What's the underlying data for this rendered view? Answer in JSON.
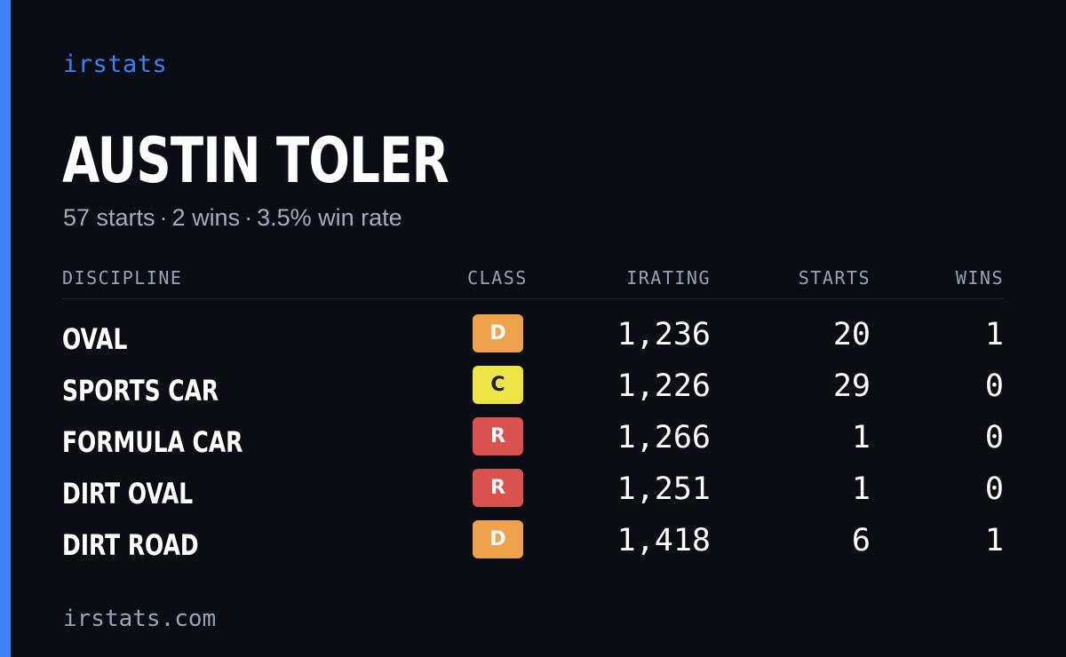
{
  "brand": {
    "name": "irstats",
    "accent_color": "#3b82f6"
  },
  "driver": {
    "name": "AUSTIN TOLER",
    "summary": {
      "starts": "57 starts",
      "wins": "2 wins",
      "win_rate": "3.5% win rate",
      "separator": "·"
    }
  },
  "table": {
    "headers": {
      "discipline": "DISCIPLINE",
      "class": "CLASS",
      "irating": "IRATING",
      "starts": "STARTS",
      "wins": "WINS"
    },
    "rows": [
      {
        "discipline": "OVAL",
        "class": "D",
        "irating": "1,236",
        "starts": "20",
        "wins": "1"
      },
      {
        "discipline": "SPORTS CAR",
        "class": "C",
        "irating": "1,226",
        "starts": "29",
        "wins": "0"
      },
      {
        "discipline": "FORMULA CAR",
        "class": "R",
        "irating": "1,266",
        "starts": "1",
        "wins": "0"
      },
      {
        "discipline": "DIRT OVAL",
        "class": "R",
        "irating": "1,251",
        "starts": "1",
        "wins": "0"
      },
      {
        "discipline": "DIRT ROAD",
        "class": "D",
        "irating": "1,418",
        "starts": "6",
        "wins": "1"
      }
    ]
  },
  "class_colors": {
    "D": {
      "bg": "#eea24b",
      "fg": "#ffffff"
    },
    "C": {
      "bg": "#ece545",
      "fg": "#1a1d24"
    },
    "R": {
      "bg": "#d9524f",
      "fg": "#ffffff"
    }
  },
  "footer": {
    "url": "irstats.com"
  }
}
